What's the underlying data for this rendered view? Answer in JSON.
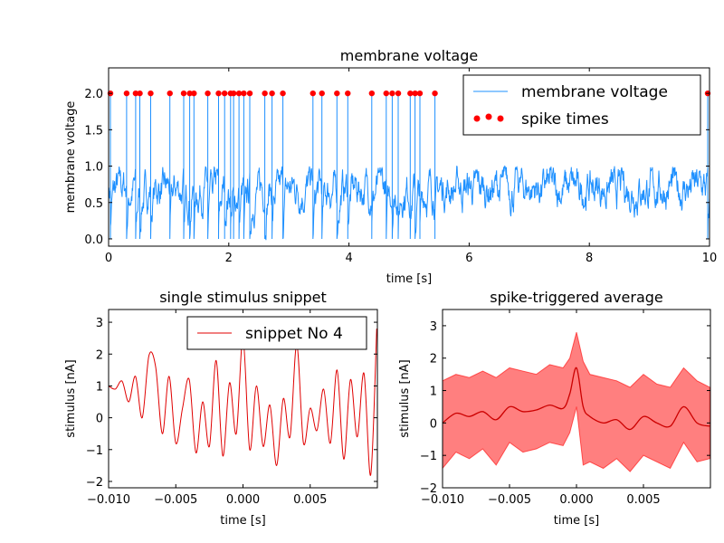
{
  "chart_data": [
    {
      "id": "voltage",
      "type": "line",
      "title": "membrane voltage",
      "xlabel": "time [s]",
      "ylabel": "membrane voltage",
      "xlim": [
        0,
        10
      ],
      "ylim": [
        -0.1,
        2.35
      ],
      "xticks": [
        0,
        2,
        4,
        6,
        8,
        10
      ],
      "xtick_labels": [
        "0",
        "2",
        "4",
        "6",
        "8",
        "10"
      ],
      "yticks": [
        0.0,
        0.5,
        1.0,
        1.5,
        2.0
      ],
      "ytick_labels": [
        "0.0",
        "0.5",
        "1.0",
        "1.5",
        "2.0"
      ],
      "grid": false,
      "legend": {
        "placement": "top-right",
        "entries": [
          "membrane voltage",
          "spike times"
        ]
      },
      "series": [
        {
          "name": "membrane voltage",
          "kind": "noisy-trace",
          "color": "#1e90ff",
          "baseline": 0.7,
          "noise_range": [
            0.3,
            1.0
          ],
          "reset_value": 0.0,
          "spike_peak": 2.0
        },
        {
          "name": "spike times",
          "kind": "scatter",
          "color": "#ff0000",
          "y": 2.0,
          "x": [
            0.03,
            0.3,
            0.45,
            0.52,
            0.7,
            1.02,
            1.25,
            1.35,
            1.42,
            1.65,
            1.83,
            1.93,
            2.03,
            2.08,
            2.17,
            2.25,
            2.35,
            2.6,
            2.72,
            2.9,
            3.4,
            3.55,
            3.8,
            3.98,
            4.38,
            4.62,
            4.72,
            4.82,
            5.02,
            5.1,
            5.18,
            5.43,
            9.97
          ]
        }
      ]
    },
    {
      "id": "snippet",
      "type": "line",
      "title": "single stimulus snippet",
      "xlabel": "time [s]",
      "ylabel": "stimulus [nA]",
      "xlim": [
        -0.01,
        0.01
      ],
      "ylim": [
        -2.2,
        3.4
      ],
      "xticks": [
        -0.01,
        -0.005,
        0.0,
        0.005
      ],
      "xtick_labels": [
        "−0.010",
        "−0.005",
        "0.000",
        "0.005"
      ],
      "yticks": [
        -2,
        -1,
        0,
        1,
        2,
        3
      ],
      "ytick_labels": [
        "−2",
        "−1",
        "0",
        "1",
        "2",
        "3"
      ],
      "grid": false,
      "legend": {
        "placement": "top-right",
        "entries": [
          "snippet No 4"
        ]
      },
      "series": [
        {
          "name": "snippet No 4",
          "color": "#e00000",
          "x": [
            -0.01,
            -0.0095,
            -0.009,
            -0.0085,
            -0.008,
            -0.0075,
            -0.007,
            -0.0065,
            -0.006,
            -0.0055,
            -0.005,
            -0.0045,
            -0.004,
            -0.0035,
            -0.003,
            -0.0025,
            -0.002,
            -0.0015,
            -0.001,
            -0.0005,
            0.0,
            0.0005,
            0.001,
            0.0015,
            0.002,
            0.0025,
            0.003,
            0.0035,
            0.004,
            0.0045,
            0.005,
            0.0055,
            0.006,
            0.0065,
            0.007,
            0.0075,
            0.008,
            0.0085,
            0.009,
            0.0095,
            0.00995
          ],
          "y": [
            1.0,
            0.9,
            1.15,
            0.5,
            1.3,
            0.0,
            1.95,
            1.6,
            -0.5,
            1.3,
            -0.8,
            0.3,
            1.2,
            -1.1,
            0.5,
            -0.9,
            1.8,
            -1.2,
            1.1,
            -0.5,
            2.5,
            -1.0,
            1.0,
            -0.9,
            0.4,
            -1.5,
            0.6,
            -0.6,
            2.3,
            -0.8,
            0.3,
            -0.4,
            0.9,
            -0.8,
            1.5,
            -1.3,
            1.2,
            -0.6,
            1.4,
            -1.8,
            2.8
          ]
        }
      ]
    },
    {
      "id": "sta",
      "type": "area",
      "title": "spike-triggered average",
      "xlabel": "time [s]",
      "ylabel": "stimulus [nA]",
      "xlim": [
        -0.01,
        0.01
      ],
      "ylim": [
        -2.0,
        3.5
      ],
      "xticks": [
        -0.01,
        -0.005,
        0.0,
        0.005
      ],
      "xtick_labels": [
        "−0.010",
        "−0.005",
        "0.000",
        "0.005"
      ],
      "yticks": [
        -2,
        -1,
        0,
        1,
        2,
        3
      ],
      "ytick_labels": [
        "−2",
        "−1",
        "0",
        "1",
        "2",
        "3"
      ],
      "grid": false,
      "series": [
        {
          "name": "mean",
          "color": "#cc0000",
          "x": [
            -0.01,
            -0.009,
            -0.008,
            -0.007,
            -0.006,
            -0.005,
            -0.004,
            -0.003,
            -0.002,
            -0.001,
            -0.0005,
            0.0,
            0.0005,
            0.001,
            0.002,
            0.003,
            0.004,
            0.005,
            0.006,
            0.007,
            0.008,
            0.009,
            0.00995
          ],
          "y": [
            0.0,
            0.3,
            0.2,
            0.35,
            0.1,
            0.5,
            0.35,
            0.4,
            0.55,
            0.45,
            0.9,
            1.7,
            0.5,
            0.2,
            0.0,
            0.1,
            -0.2,
            0.2,
            0.0,
            -0.1,
            0.5,
            0.0,
            -0.1
          ],
          "lower": [
            -1.4,
            -0.9,
            -1.1,
            -0.8,
            -1.3,
            -0.6,
            -0.9,
            -0.8,
            -0.6,
            -0.7,
            -0.3,
            0.5,
            -1.3,
            -1.2,
            -1.4,
            -1.1,
            -1.5,
            -1.0,
            -1.2,
            -1.4,
            -0.6,
            -1.2,
            -1.1
          ],
          "upper": [
            1.3,
            1.5,
            1.4,
            1.6,
            1.4,
            1.7,
            1.6,
            1.5,
            1.8,
            1.7,
            2.0,
            2.8,
            1.9,
            1.5,
            1.4,
            1.3,
            1.1,
            1.5,
            1.2,
            1.1,
            1.7,
            1.3,
            1.1
          ]
        }
      ]
    }
  ]
}
